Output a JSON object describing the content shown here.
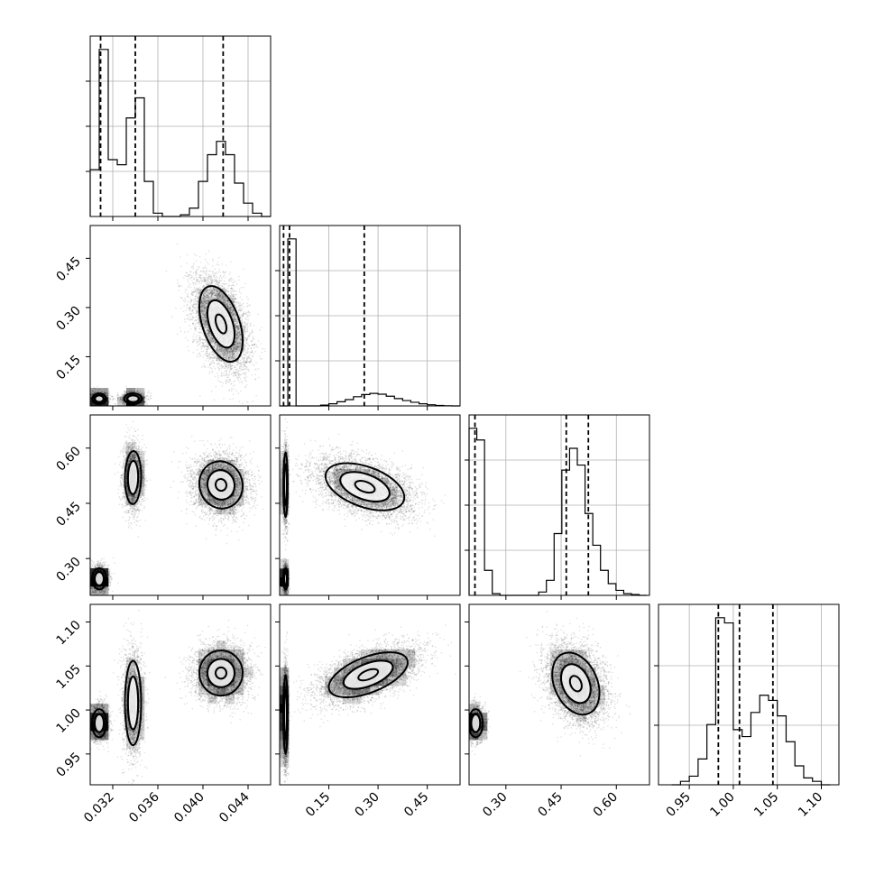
{
  "chart_data": {
    "type": "corner",
    "title": "",
    "parameters": [
      {
        "index": 0,
        "ticks": [
          0.032,
          0.036,
          0.04,
          0.044
        ],
        "tick_labels": [
          "0.032",
          "0.036",
          "0.040",
          "0.044"
        ],
        "range": [
          0.03,
          0.046
        ]
      },
      {
        "index": 1,
        "ticks": [
          0.15,
          0.3,
          0.45
        ],
        "tick_labels": [
          "0.15",
          "0.30",
          "0.45"
        ],
        "range": [
          0.0,
          0.55
        ]
      },
      {
        "index": 2,
        "ticks": [
          0.3,
          0.45,
          0.6
        ],
        "tick_labels": [
          "0.30",
          "0.45",
          "0.60"
        ],
        "range": [
          0.2,
          0.69
        ]
      },
      {
        "index": 3,
        "ticks": [
          0.95,
          1.0,
          1.05,
          1.1
        ],
        "tick_labels": [
          "0.95",
          "1.00",
          "1.05",
          "1.10"
        ],
        "range": [
          0.915,
          1.12
        ]
      }
    ],
    "histograms": [
      {
        "param": 0,
        "edges": [
          0.03,
          0.0308,
          0.0316,
          0.0324,
          0.0332,
          0.034,
          0.0348,
          0.0356,
          0.0364,
          0.0372,
          0.038,
          0.0388,
          0.0396,
          0.0404,
          0.0412,
          0.042,
          0.0428,
          0.0436,
          0.0444,
          0.0452,
          0.046
        ],
        "counts": [
          0.28,
          1.0,
          0.34,
          0.31,
          0.59,
          0.71,
          0.21,
          0.02,
          0.0,
          0.0,
          0.01,
          0.05,
          0.21,
          0.37,
          0.45,
          0.37,
          0.2,
          0.08,
          0.02,
          0.0
        ],
        "quantiles": [
          0.03092,
          0.034,
          0.04179
        ],
        "y_ticks": [
          0.25,
          0.5,
          0.75
        ]
      },
      {
        "param": 1,
        "edges": [
          0.0,
          0.025,
          0.05,
          0.075,
          0.1,
          0.125,
          0.15,
          0.175,
          0.2,
          0.225,
          0.25,
          0.275,
          0.3,
          0.325,
          0.35,
          0.375,
          0.4,
          0.425,
          0.45,
          0.475,
          0.5,
          0.525,
          0.55
        ],
        "counts": [
          0.0,
          1.0,
          0.0,
          0.0,
          0.0,
          0.005,
          0.013,
          0.025,
          0.038,
          0.055,
          0.068,
          0.075,
          0.07,
          0.058,
          0.044,
          0.032,
          0.022,
          0.013,
          0.007,
          0.003,
          0.001,
          0.0
        ],
        "quantiles": [
          0.012,
          0.03,
          0.258
        ],
        "y_ticks": [
          0.25,
          0.5,
          0.75
        ]
      },
      {
        "param": 2,
        "edges": [
          0.2,
          0.221,
          0.242,
          0.263,
          0.284,
          0.305,
          0.326,
          0.347,
          0.368,
          0.389,
          0.41,
          0.431,
          0.452,
          0.473,
          0.494,
          0.515,
          0.536,
          0.557,
          0.578,
          0.599,
          0.62,
          0.641,
          0.662,
          0.683
        ],
        "counts": [
          1.0,
          0.93,
          0.15,
          0.01,
          0.0,
          0.0,
          0.0,
          0.0,
          0.0,
          0.02,
          0.09,
          0.37,
          0.75,
          0.88,
          0.78,
          0.49,
          0.3,
          0.15,
          0.07,
          0.03,
          0.01,
          0.005,
          0.0
        ],
        "quantiles": [
          0.216,
          0.464,
          0.524
        ],
        "y_ticks": [
          0.25,
          0.5,
          0.75
        ]
      },
      {
        "param": 3,
        "edges": [
          0.93,
          0.94,
          0.95,
          0.96,
          0.97,
          0.98,
          0.99,
          1.0,
          1.01,
          1.02,
          1.03,
          1.04,
          1.05,
          1.06,
          1.07,
          1.08,
          1.09,
          1.1,
          1.11
        ],
        "counts": [
          0.0,
          0.02,
          0.05,
          0.15,
          0.35,
          0.97,
          0.94,
          0.32,
          0.28,
          0.42,
          0.52,
          0.49,
          0.4,
          0.25,
          0.11,
          0.04,
          0.02,
          0.0
        ],
        "quantiles": [
          0.983,
          1.007,
          1.045
        ],
        "y_ticks": [
          0.33,
          0.66
        ]
      }
    ],
    "pairs": [
      {
        "x": 0,
        "y": 1,
        "clusters": [
          {
            "mx": 0.0416,
            "my": 0.25,
            "sx": 0.0012,
            "sy": 0.072,
            "rho": -0.45,
            "n": 5200,
            "peak": [
              0.0416,
              0.255
            ],
            "tilt": -0.6
          },
          {
            "mx": 0.0308,
            "my": 0.022,
            "sx": 0.00038,
            "sy": 0.01,
            "rho": 0.0,
            "n": 1500
          },
          {
            "mx": 0.0338,
            "my": 0.022,
            "sx": 0.0005,
            "sy": 0.01,
            "rho": 0.0,
            "n": 1600
          }
        ]
      },
      {
        "x": 0,
        "y": 2,
        "clusters": [
          {
            "mx": 0.0416,
            "my": 0.5,
            "sx": 0.0012,
            "sy": 0.04,
            "rho": -0.05,
            "n": 4200
          },
          {
            "mx": 0.0338,
            "my": 0.52,
            "sx": 0.00045,
            "sy": 0.045,
            "rho": 0.05,
            "n": 2200
          },
          {
            "mx": 0.0308,
            "my": 0.245,
            "sx": 0.0004,
            "sy": 0.018,
            "rho": 0.0,
            "n": 2000
          }
        ]
      },
      {
        "x": 0,
        "y": 3,
        "clusters": [
          {
            "mx": 0.0416,
            "my": 1.042,
            "sx": 0.0012,
            "sy": 0.016,
            "rho": 0.0,
            "n": 4200
          },
          {
            "mx": 0.0338,
            "my": 1.008,
            "sx": 0.00045,
            "sy": 0.03,
            "rho": 0.0,
            "n": 2200
          },
          {
            "mx": 0.0308,
            "my": 0.985,
            "sx": 0.0004,
            "sy": 0.01,
            "rho": 0.0,
            "n": 2000
          }
        ]
      },
      {
        "x": 1,
        "y": 2,
        "clusters": [
          {
            "mx": 0.26,
            "my": 0.495,
            "sx": 0.075,
            "sy": 0.04,
            "rho": -0.45,
            "n": 5200
          },
          {
            "mx": 0.018,
            "my": 0.5,
            "sx": 0.004,
            "sy": 0.055,
            "rho": 0.0,
            "n": 1500
          },
          {
            "mx": 0.018,
            "my": 0.245,
            "sx": 0.004,
            "sy": 0.018,
            "rho": 0.0,
            "n": 1500
          }
        ]
      },
      {
        "x": 1,
        "y": 3,
        "clusters": [
          {
            "mx": 0.27,
            "my": 1.04,
            "sx": 0.075,
            "sy": 0.016,
            "rho": 0.55,
            "n": 5200
          },
          {
            "mx": 0.018,
            "my": 0.995,
            "sx": 0.004,
            "sy": 0.028,
            "rho": 0.0,
            "n": 2200
          }
        ]
      },
      {
        "x": 2,
        "y": 3,
        "clusters": [
          {
            "mx": 0.49,
            "my": 1.03,
            "sx": 0.04,
            "sy": 0.022,
            "rho": -0.3,
            "n": 5200
          },
          {
            "mx": 0.218,
            "my": 0.985,
            "sx": 0.012,
            "sy": 0.01,
            "rho": 0.0,
            "n": 2000
          }
        ]
      }
    ]
  }
}
